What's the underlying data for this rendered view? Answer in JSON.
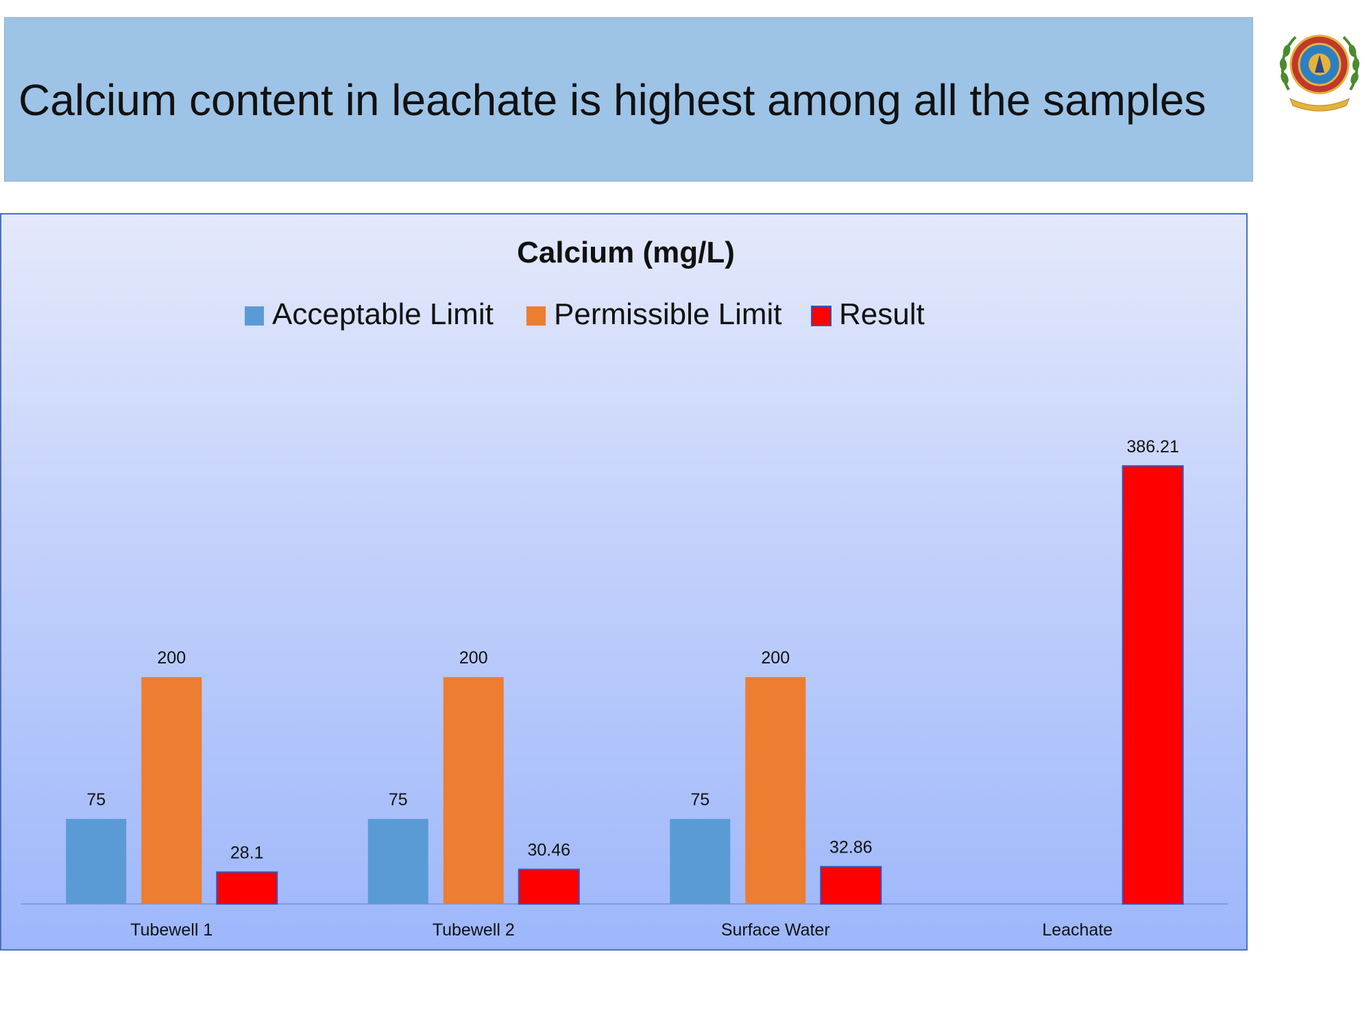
{
  "slide": {
    "title": "Calcium content in leachate is highest among all the samples"
  },
  "logo": {
    "name": "institution-emblem"
  },
  "chart_data": {
    "type": "bar",
    "title": "Calcium (mg/L)",
    "xlabel": "",
    "ylabel": "",
    "ylim": [
      0,
      400
    ],
    "grid": false,
    "legend_position": "top",
    "categories": [
      "Tubewell 1",
      "Tubewell 2",
      "Surface Water",
      "Leachate"
    ],
    "series": [
      {
        "name": "Acceptable Limit",
        "color": "#5b9bd5",
        "values": [
          75,
          75,
          75,
          null
        ],
        "labels": [
          "75",
          "75",
          "75",
          ""
        ]
      },
      {
        "name": "Permissible Limit",
        "color": "#ed7d31",
        "values": [
          200,
          200,
          200,
          null
        ],
        "labels": [
          "200",
          "200",
          "200",
          ""
        ]
      },
      {
        "name": "Result",
        "color": "#ff0000",
        "stroke": "#2f55c5",
        "values": [
          28.1,
          30.46,
          32.86,
          386.21
        ],
        "labels": [
          "28.1",
          "30.46",
          "32.86",
          "386.21"
        ]
      }
    ]
  }
}
